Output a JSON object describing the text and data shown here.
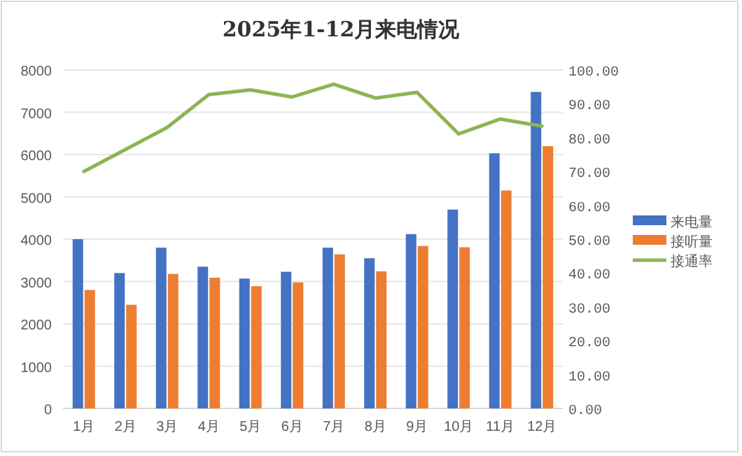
{
  "chart_data": {
    "type": "bar",
    "title": "2025年1-12月来电情况",
    "categories": [
      "1月",
      "2月",
      "3月",
      "4月",
      "5月",
      "6月",
      "7月",
      "8月",
      "9月",
      "10月",
      "11月",
      "12月"
    ],
    "series": [
      {
        "name": "来电量",
        "color": "#4472c4",
        "values": [
          4000,
          3200,
          3800,
          3350,
          3070,
          3230,
          3800,
          3550,
          4120,
          4700,
          6030,
          7480
        ]
      },
      {
        "name": "接听量",
        "color": "#ed7d31",
        "values": [
          2800,
          2450,
          3180,
          3090,
          2890,
          2980,
          3640,
          3240,
          3840,
          3810,
          5150,
          6200
        ]
      },
      {
        "name": "接通率",
        "type": "line",
        "axis": "y2",
        "color": "#8cb553",
        "values": [
          70,
          76.5,
          83,
          92.7,
          94.1,
          92,
          95.8,
          91.7,
          93.4,
          81.1,
          85.5,
          83.4
        ]
      }
    ],
    "ylim": [
      0,
      8000
    ],
    "yticks": [
      0,
      1000,
      2000,
      3000,
      4000,
      5000,
      6000,
      7000,
      8000
    ],
    "y2lim": [
      0,
      100
    ],
    "y2ticks": [
      {
        "value": 0,
        "label": "0.00"
      },
      {
        "value": 10,
        "label": "10.00"
      },
      {
        "value": 20,
        "label": "20.00"
      },
      {
        "value": 30,
        "label": "30.00"
      },
      {
        "value": 40,
        "label": "40.00"
      },
      {
        "value": 50,
        "label": "50.00"
      },
      {
        "value": 60,
        "label": "60.00"
      },
      {
        "value": 70,
        "label": "70.00"
      },
      {
        "value": 80,
        "label": "80.00"
      },
      {
        "value": 90,
        "label": "90.00"
      },
      {
        "value": 100,
        "label": "100.00"
      }
    ],
    "grid": "y",
    "legend": "right",
    "marker": "none"
  }
}
